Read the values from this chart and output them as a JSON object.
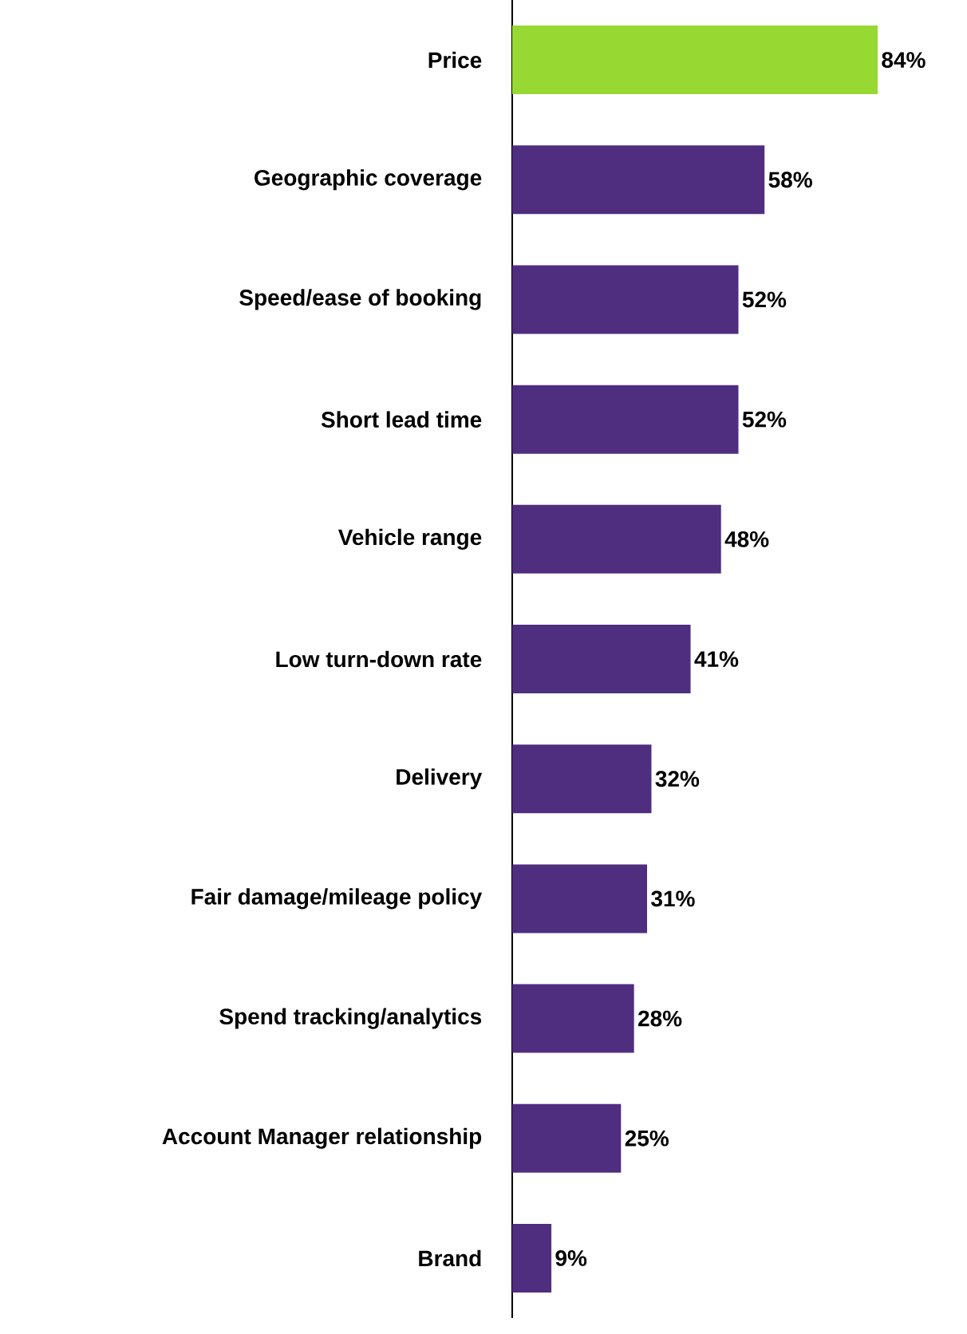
{
  "chart_data": {
    "type": "bar",
    "orientation": "horizontal",
    "categories": [
      "Price",
      "Geographic coverage",
      "Speed/ease of booking",
      "Short lead time",
      "Vehicle range",
      "Low turn-down rate",
      "Delivery",
      "Fair damage/mileage policy",
      "Spend tracking/analytics",
      "Account Manager relationship",
      "Brand"
    ],
    "values": [
      84,
      58,
      52,
      52,
      48,
      41,
      32,
      31,
      28,
      25,
      9
    ],
    "colors": [
      "#97d833",
      "#4f2d7f",
      "#4f2d7f",
      "#4f2d7f",
      "#4f2d7f",
      "#4f2d7f",
      "#4f2d7f",
      "#4f2d7f",
      "#4f2d7f",
      "#4f2d7f",
      "#4f2d7f"
    ],
    "value_labels": [
      "84%",
      "58%",
      "52%",
      "52%",
      "48%",
      "41%",
      "32%",
      "31%",
      "28%",
      "25%",
      "9%"
    ]
  }
}
